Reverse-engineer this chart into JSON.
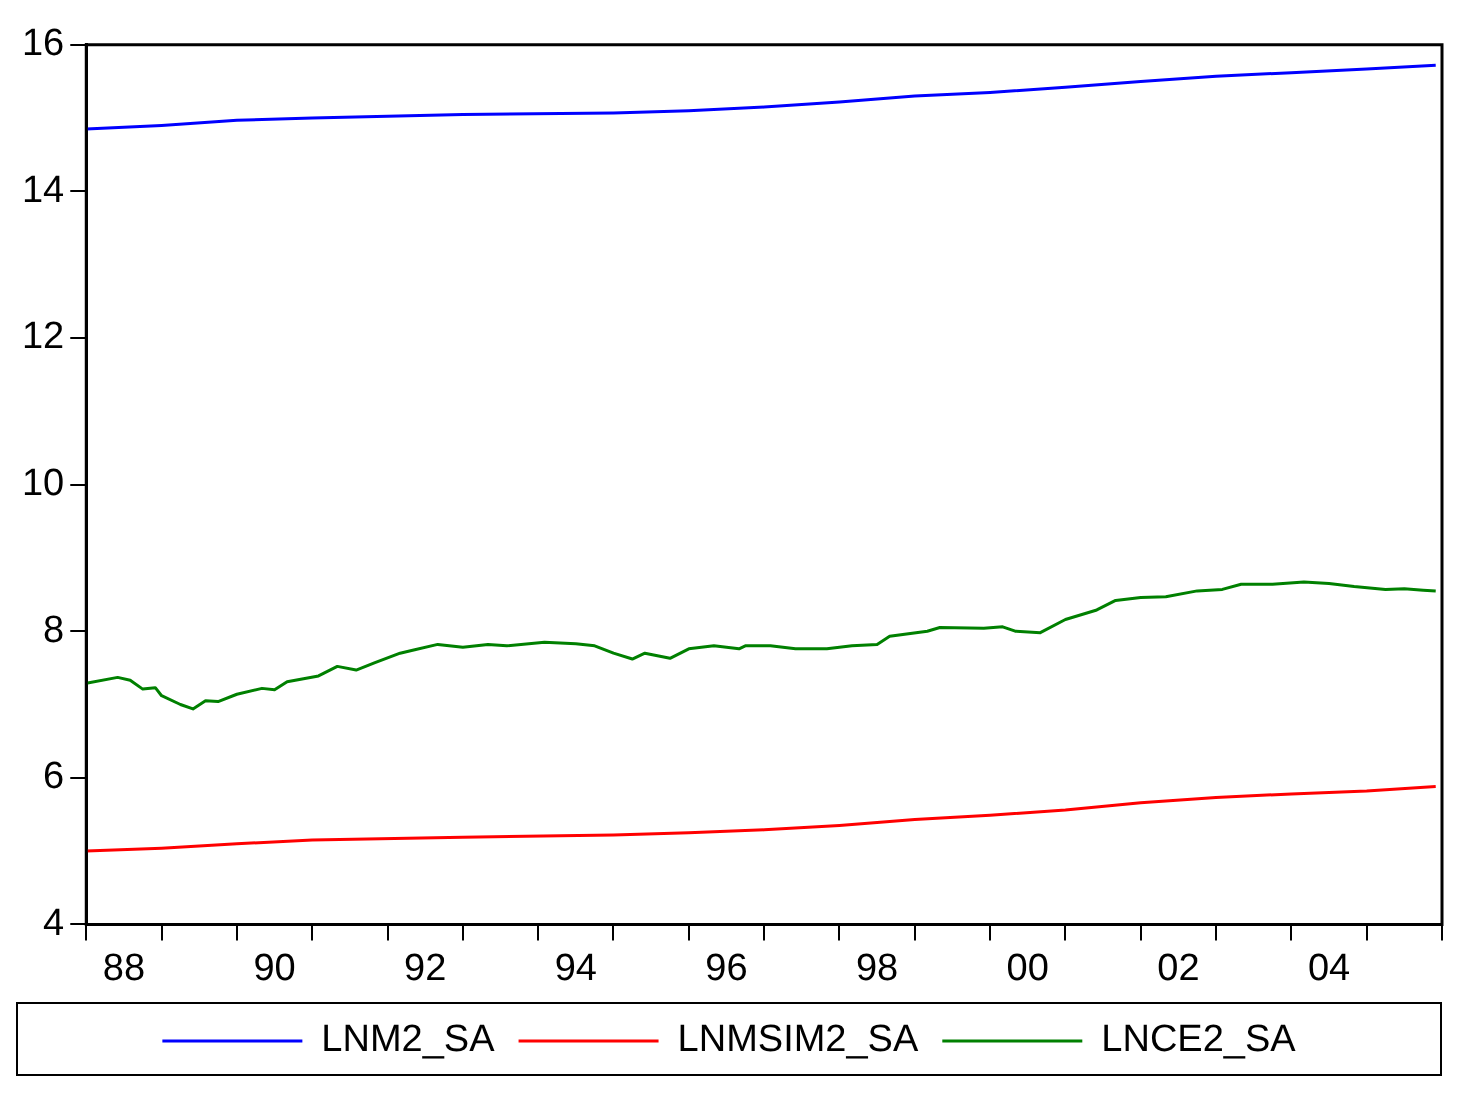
{
  "chart_data": {
    "type": "line",
    "xlim": [
      "1988",
      "2006"
    ],
    "ylim": [
      4,
      16
    ],
    "yticks": [
      4,
      6,
      8,
      10,
      12,
      14,
      16
    ],
    "xticks": [
      {
        "value": "1988",
        "label": null
      },
      {
        "value": "1988-07-01",
        "label": "88"
      },
      {
        "value": "1989",
        "label": null
      },
      {
        "value": "1990",
        "label": null
      },
      {
        "value": "1990-07-01",
        "label": "90"
      },
      {
        "value": "1991",
        "label": null
      },
      {
        "value": "1992",
        "label": null
      },
      {
        "value": "1992-07-01",
        "label": "92"
      },
      {
        "value": "1993",
        "label": null
      },
      {
        "value": "1994",
        "label": null
      },
      {
        "value": "1994-07-01",
        "label": "94"
      },
      {
        "value": "1995",
        "label": null
      },
      {
        "value": "1996",
        "label": null
      },
      {
        "value": "1996-07-01",
        "label": "96"
      },
      {
        "value": "1997",
        "label": null
      },
      {
        "value": "1998",
        "label": null
      },
      {
        "value": "1998-07-01",
        "label": "98"
      },
      {
        "value": "1999",
        "label": null
      },
      {
        "value": "2000",
        "label": null
      },
      {
        "value": "2000-07-01",
        "label": "00"
      },
      {
        "value": "2001",
        "label": null
      },
      {
        "value": "2002",
        "label": null
      },
      {
        "value": "2002-07-01",
        "label": "02"
      },
      {
        "value": "2003",
        "label": null
      },
      {
        "value": "2004",
        "label": null
      },
      {
        "value": "2004-07-01",
        "label": "04"
      },
      {
        "value": "2005",
        "label": null
      },
      {
        "value": "2006",
        "label": null
      }
    ],
    "grid": false,
    "legend": "bottom",
    "marker": "none",
    "line_style": "solid",
    "series": [
      {
        "name": "LNM2_SA",
        "color": "#0000ff",
        "x": [
          "1988-01",
          "1989-01",
          "1990-01",
          "1991-01",
          "1993-01",
          "1995-01",
          "1996-01",
          "1997-01",
          "1998-01",
          "1999-01",
          "2000-01",
          "2001-01",
          "2002-01",
          "2003-01",
          "2004-01",
          "2005-01",
          "2005-12"
        ],
        "values": [
          14.85,
          14.9,
          14.97,
          15.0,
          15.05,
          15.07,
          15.1,
          15.15,
          15.22,
          15.3,
          15.35,
          15.42,
          15.5,
          15.57,
          15.62,
          15.67,
          15.72
        ]
      },
      {
        "name": "LNMSIM2_SA",
        "color": "#ff0000",
        "x": [
          "1988-01",
          "1989-01",
          "1990-01",
          "1991-01",
          "1993-01",
          "1995-01",
          "1996-01",
          "1997-01",
          "1998-01",
          "1999-01",
          "2000-01",
          "2001-01",
          "2002-01",
          "2003-01",
          "2004-01",
          "2005-01",
          "2005-12"
        ],
        "values": [
          5.0,
          5.04,
          5.1,
          5.15,
          5.19,
          5.22,
          5.25,
          5.29,
          5.35,
          5.43,
          5.49,
          5.56,
          5.66,
          5.73,
          5.78,
          5.82,
          5.88
        ]
      },
      {
        "name": "LNCE2_SA",
        "color": "#008000",
        "x": [
          "1988-01",
          "1988-06",
          "1988-08",
          "1988-10",
          "1988-12",
          "1989-01",
          "1989-04",
          "1989-06",
          "1989-08",
          "1989-10",
          "1990-01",
          "1990-05",
          "1990-07",
          "1990-09",
          "1991-02",
          "1991-05",
          "1991-08",
          "1991-11",
          "1992-03",
          "1992-05",
          "1992-09",
          "1993-01",
          "1993-05",
          "1993-08",
          "1994-02",
          "1994-07",
          "1994-10",
          "1995-01",
          "1995-04",
          "1995-06",
          "1995-10",
          "1996-01",
          "1996-05",
          "1996-09",
          "1996-10",
          "1997-02",
          "1997-06",
          "1997-11",
          "1998-03",
          "1998-07",
          "1998-09",
          "1999-03",
          "1999-05",
          "1999-12",
          "2000-03",
          "2000-05",
          "2000-09",
          "2001-01",
          "2001-06",
          "2001-09",
          "2002-01",
          "2002-05",
          "2002-10",
          "2003-02",
          "2003-05",
          "2003-10",
          "2004-03",
          "2004-07",
          "2004-11",
          "2005-04",
          "2005-07",
          "2005-10",
          "2005-12"
        ],
        "values": [
          7.29,
          7.37,
          7.33,
          7.21,
          7.23,
          7.12,
          7.0,
          6.94,
          7.05,
          7.04,
          7.14,
          7.22,
          7.2,
          7.31,
          7.39,
          7.52,
          7.47,
          7.57,
          7.7,
          7.74,
          7.82,
          7.78,
          7.82,
          7.8,
          7.85,
          7.83,
          7.8,
          7.7,
          7.62,
          7.7,
          7.63,
          7.76,
          7.8,
          7.76,
          7.8,
          7.8,
          7.76,
          7.76,
          7.8,
          7.82,
          7.93,
          8.0,
          8.05,
          8.04,
          8.06,
          8.0,
          7.98,
          8.16,
          8.29,
          8.42,
          8.46,
          8.47,
          8.55,
          8.57,
          8.64,
          8.64,
          8.67,
          8.65,
          8.61,
          8.57,
          8.58,
          8.56,
          8.55
        ]
      }
    ]
  }
}
